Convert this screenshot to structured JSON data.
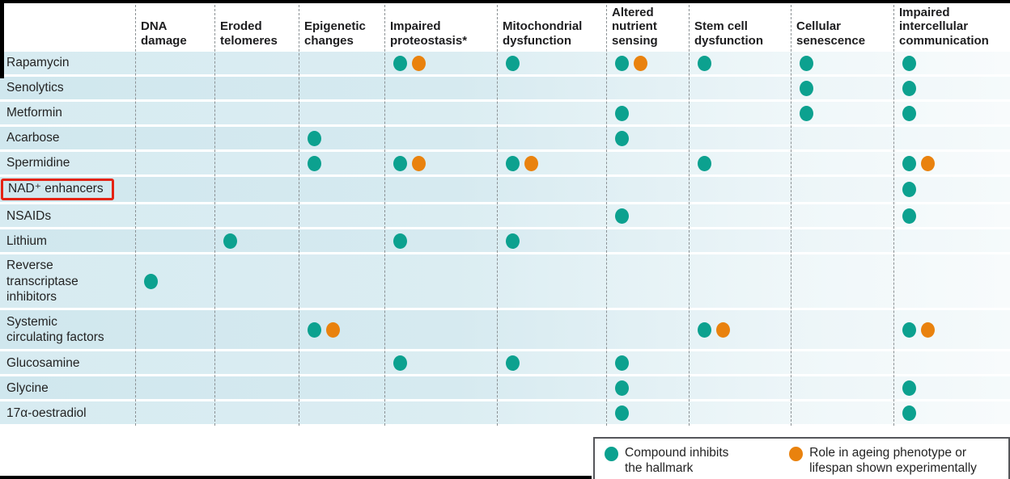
{
  "colors": {
    "teal": "#0CA18F",
    "orange": "#E9820E",
    "highlight_red": "#E42313"
  },
  "legend": {
    "items": [
      {
        "color": "teal",
        "label": "Compound inhibits the hallmark"
      },
      {
        "color": "orange",
        "label": "Role in ageing phenotype or lifespan shown experimentally"
      }
    ]
  },
  "chart_data": {
    "type": "table",
    "description": "Matrix of anti-ageing compounds (rows) versus hallmarks of ageing (columns). Teal dot = compound inhibits the hallmark; orange dot = role in ageing phenotype or lifespan shown experimentally. The row label NAD⁺ enhancers is outlined with a red annotation box.",
    "columns": [
      {
        "id": "dna",
        "label": "DNA damage"
      },
      {
        "id": "telomeres",
        "label": "Eroded telomeres"
      },
      {
        "id": "epigenetic",
        "label": "Epigenetic changes"
      },
      {
        "id": "proteostasis",
        "label": "Impaired proteostasis*"
      },
      {
        "id": "mitochondrial",
        "label": "Mitochondrial dysfunction"
      },
      {
        "id": "nutrient",
        "label": "Altered nutrient sensing"
      },
      {
        "id": "stemcell",
        "label": "Stem cell dysfunction"
      },
      {
        "id": "senescence",
        "label": "Cellular senescence"
      },
      {
        "id": "intercellular",
        "label": "Impaired intercellular communication"
      }
    ],
    "rows": [
      {
        "label": "Rapamycin",
        "highlighted": false,
        "dots": {
          "proteostasis": [
            "teal",
            "orange"
          ],
          "mitochondrial": [
            "teal"
          ],
          "nutrient": [
            "teal",
            "orange"
          ],
          "stemcell": [
            "teal"
          ],
          "senescence": [
            "teal"
          ],
          "intercellular": [
            "teal"
          ]
        }
      },
      {
        "label": "Senolytics",
        "highlighted": false,
        "dots": {
          "senescence": [
            "teal"
          ],
          "intercellular": [
            "teal"
          ]
        }
      },
      {
        "label": "Metformin",
        "highlighted": false,
        "dots": {
          "nutrient": [
            "teal"
          ],
          "senescence": [
            "teal"
          ],
          "intercellular": [
            "teal"
          ]
        }
      },
      {
        "label": "Acarbose",
        "highlighted": false,
        "dots": {
          "epigenetic": [
            "teal"
          ],
          "nutrient": [
            "teal"
          ]
        }
      },
      {
        "label": "Spermidine",
        "highlighted": false,
        "dots": {
          "epigenetic": [
            "teal"
          ],
          "proteostasis": [
            "teal",
            "orange"
          ],
          "mitochondrial": [
            "teal",
            "orange"
          ],
          "stemcell": [
            "teal"
          ],
          "intercellular": [
            "teal",
            "orange"
          ]
        }
      },
      {
        "label": "NAD⁺ enhancers",
        "highlighted": true,
        "dots": {
          "intercellular": [
            "teal"
          ]
        }
      },
      {
        "label": "NSAIDs",
        "highlighted": false,
        "dots": {
          "nutrient": [
            "teal"
          ],
          "intercellular": [
            "teal"
          ]
        }
      },
      {
        "label": "Lithium",
        "highlighted": false,
        "dots": {
          "telomeres": [
            "teal"
          ],
          "proteostasis": [
            "teal"
          ],
          "mitochondrial": [
            "teal"
          ]
        }
      },
      {
        "label": "Reverse transcriptase inhibitors",
        "highlighted": false,
        "dots": {
          "dna": [
            "teal"
          ]
        }
      },
      {
        "label": "Systemic circulating factors",
        "highlighted": false,
        "dots": {
          "epigenetic": [
            "teal",
            "orange"
          ],
          "stemcell": [
            "teal",
            "orange"
          ],
          "intercellular": [
            "teal",
            "orange"
          ]
        }
      },
      {
        "label": "Glucosamine",
        "highlighted": false,
        "dots": {
          "proteostasis": [
            "teal"
          ],
          "mitochondrial": [
            "teal"
          ],
          "nutrient": [
            "teal"
          ]
        }
      },
      {
        "label": "Glycine",
        "highlighted": false,
        "dots": {
          "nutrient": [
            "teal"
          ],
          "intercellular": [
            "teal"
          ]
        }
      },
      {
        "label": "17α-oestradiol",
        "highlighted": false,
        "dots": {
          "nutrient": [
            "teal"
          ],
          "intercellular": [
            "teal"
          ]
        }
      }
    ],
    "markers": {
      "teal": "Compound inhibits the hallmark",
      "orange": "Role in ageing phenotype or lifespan shown experimentally"
    },
    "layout": {
      "grid": "dashed vertical column separators",
      "legend_position": "bottom-right"
    }
  }
}
